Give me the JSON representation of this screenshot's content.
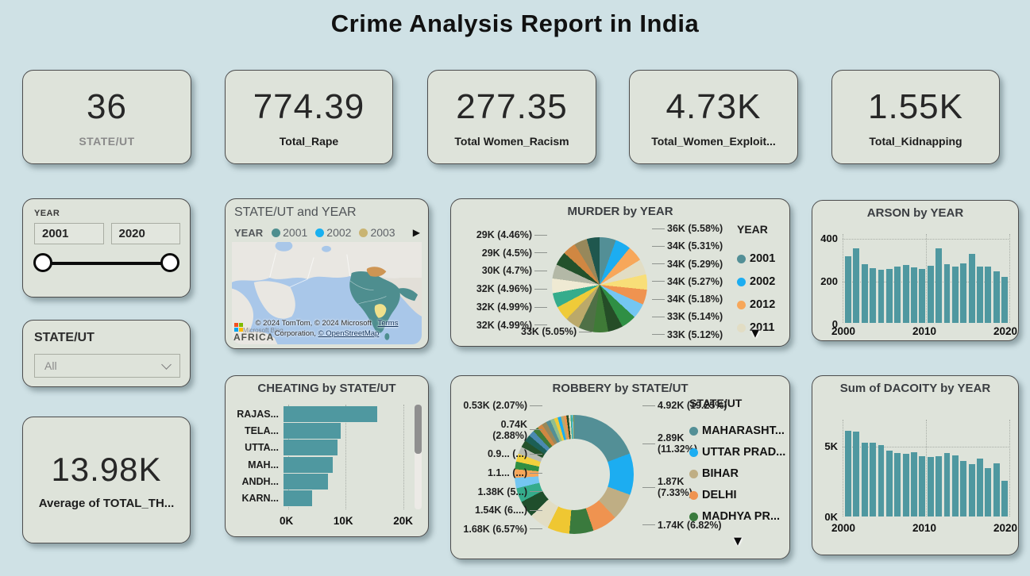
{
  "page_title": "Crime Analysis Report in India",
  "icons": {
    "legend_more": "▼",
    "map_expand": "▶"
  },
  "kpis": [
    {
      "value": "36",
      "label": "STATE/UT"
    },
    {
      "value": "774.39",
      "label": "Total_Rape"
    },
    {
      "value": "277.35",
      "label": "Total Women_Racism"
    },
    {
      "value": "4.73K",
      "label": "Total_Women_Exploit..."
    },
    {
      "value": "1.55K",
      "label": "Total_Kidnapping"
    }
  ],
  "slicers": {
    "year": {
      "label": "YEAR",
      "min": "2001",
      "max": "2020"
    },
    "state": {
      "label": "STATE/UT",
      "value": "All"
    }
  },
  "avg_card": {
    "value": "13.98K",
    "label": "Average of TOTAL_TH..."
  },
  "map_panel": {
    "title": "STATE/UT and YEAR",
    "legend_title": "YEAR",
    "legend": [
      {
        "label": "2001",
        "color": "#4E8E8F"
      },
      {
        "label": "2002",
        "color": "#18B0F0"
      },
      {
        "label": "2003",
        "color": "#C9B472"
      }
    ],
    "attribution_line1": "© 2024 TomTom, © 2024 Microsoft",
    "terms_label": "Terms",
    "attribution_line2": "Corporation,",
    "osm_label": "© OpenStreetMap",
    "africa_label": "AFRICA",
    "watermark": "Microsoft Bing"
  },
  "chart_data": [
    {
      "id": "murder",
      "type": "pie",
      "title": "MURDER by YEAR",
      "legend_title": "YEAR",
      "legend": [
        {
          "label": "2001",
          "color": "#538F96"
        },
        {
          "label": "2002",
          "color": "#1CADF1"
        },
        {
          "label": "2012",
          "color": "#F7A75A"
        },
        {
          "label": "2011",
          "color": "#E2DDC4"
        }
      ],
      "slices": [
        {
          "pct": 5.58,
          "color": "#538F96",
          "label": "36K (5.58%)"
        },
        {
          "pct": 5.31,
          "color": "#1CADF1",
          "label": "34K (5.31%)"
        },
        {
          "pct": 5.29,
          "color": "#F7A75A",
          "label": "34K (5.29%)"
        },
        {
          "pct": 5.27,
          "color": "#E2DDC4",
          "label": "34K (5.27%)"
        },
        {
          "pct": 5.18,
          "color": "#F8DE78",
          "label": "34K (5.18%)"
        },
        {
          "pct": 5.14,
          "color": "#EF9350",
          "label": "33K (5.14%)"
        },
        {
          "pct": 5.12,
          "color": "#74C6F2",
          "label": "33K (5.12%)"
        },
        {
          "pct": 5.1,
          "color": "#2F8F44",
          "label": null
        },
        {
          "pct": 5.08,
          "color": "#254D27",
          "label": null
        },
        {
          "pct": 5.06,
          "color": "#3F7A37",
          "label": null
        },
        {
          "pct": 5.05,
          "color": "#4F7046",
          "label": "33K (5.05%)"
        },
        {
          "pct": 5.02,
          "color": "#BBA96A",
          "label": null
        },
        {
          "pct": 4.99,
          "color": "#EFCB39",
          "label": "32K (4.99%)"
        },
        {
          "pct": 4.99,
          "color": "#35AC8C",
          "label": "32K (4.99%)"
        },
        {
          "pct": 4.96,
          "color": "#EFEAD3",
          "label": "32K (4.96%)"
        },
        {
          "pct": 4.85,
          "color": "#B3B8A6",
          "label": null
        },
        {
          "pct": 4.7,
          "color": "#23512B",
          "label": "30K (4.7%)"
        },
        {
          "pct": 4.5,
          "color": "#D08742",
          "label": "29K (4.5%)"
        },
        {
          "pct": 4.46,
          "color": "#97885B",
          "label": "29K (4.46%)"
        },
        {
          "pct": 4.35,
          "color": "#1F574E",
          "label": null
        }
      ],
      "labels_left": [
        "29K (4.46%)",
        "29K (4.5%)",
        "30K (4.7%)",
        "32K (4.96%)",
        "32K (4.99%)",
        "32K (4.99%)"
      ],
      "label_bottom": "33K (5.05%)",
      "labels_right": [
        "36K (5.58%)",
        "34K (5.31%)",
        "34K (5.29%)",
        "34K (5.27%)",
        "34K (5.18%)",
        "33K (5.14%)",
        "33K (5.12%)"
      ]
    },
    {
      "id": "arson",
      "type": "bar",
      "title": "ARSON by YEAR",
      "x": [
        2001,
        2002,
        2003,
        2004,
        2005,
        2006,
        2007,
        2008,
        2009,
        2010,
        2011,
        2012,
        2013,
        2014,
        2015,
        2016,
        2017,
        2018,
        2019,
        2020
      ],
      "values": [
        312,
        350,
        274,
        256,
        250,
        252,
        264,
        271,
        258,
        251,
        265,
        349,
        275,
        264,
        277,
        324,
        262,
        264,
        240,
        214
      ],
      "xlabel": "",
      "ylabel": "",
      "ylim": [
        0,
        400
      ],
      "yticks": [
        "400",
        "200",
        "0"
      ],
      "xticks": [
        "2000",
        "2010",
        "2020"
      ],
      "bar_color": "#4F98A0",
      "grid": true
    },
    {
      "id": "cheating",
      "type": "bar",
      "title": "CHEATING by STATE/UT",
      "orientation": "horizontal",
      "categories": [
        "RAJAS...",
        "TELA...",
        "UTTA...",
        "MAH...",
        "ANDH...",
        "KARN..."
      ],
      "values": [
        16.3,
        9.9,
        9.4,
        8.6,
        7.7,
        5.0
      ],
      "value_unit": "K",
      "xlim": [
        0,
        20
      ],
      "xticks": [
        "0K",
        "10K",
        "20K"
      ],
      "bar_color": "#4F98A0",
      "grid": true
    },
    {
      "id": "robbery",
      "type": "pie",
      "title": "ROBBERY by STATE/UT",
      "donut": true,
      "legend_title": "STATE/UT",
      "legend": [
        {
          "label": "MAHARASHT...",
          "color": "#538F96"
        },
        {
          "label": "UTTAR PRAD...",
          "color": "#1CADF1"
        },
        {
          "label": "BIHAR",
          "color": "#BFAE84"
        },
        {
          "label": "DELHI",
          "color": "#EF9350"
        },
        {
          "label": "MADHYA PR...",
          "color": "#3A7A3D"
        }
      ],
      "slices": [
        {
          "pct": 19.25,
          "color": "#538F96",
          "label": "4.92K (19.25%)"
        },
        {
          "pct": 11.32,
          "color": "#1CADF1",
          "label": "2.89K (11.32%)"
        },
        {
          "pct": 7.33,
          "color": "#BFAE84",
          "label": "1.87K (7.33%)"
        },
        {
          "pct": 6.82,
          "color": "#EF9350",
          "label": "1.74K (6.82%)"
        },
        {
          "pct": 6.57,
          "color": "#3A7A3D",
          "label": "1.68K (6.57%)"
        },
        {
          "pct": 6.04,
          "color": "#EFC732",
          "label": "1.54K (6....)"
        },
        {
          "pct": 5.41,
          "color": "#E2DDC4",
          "label": "1.38K (5...)"
        },
        {
          "pct": 4.6,
          "color": "#1F4E2C",
          "label": "1.1... (...)"
        },
        {
          "pct": 3.9,
          "color": "#35AC8C",
          "label": "0.9... (...)"
        },
        {
          "pct": 2.88,
          "color": "#74C6F2",
          "label": "0.74K (2.88%)"
        },
        {
          "pct": 2.3,
          "color": "#F7A75A",
          "label": null
        },
        {
          "pct": 2.07,
          "color": "#2F8F44",
          "label": "0.53K (2.07%)"
        },
        {
          "pct": 2.2,
          "color": "#F2D13E",
          "label": null
        },
        {
          "pct": 2.0,
          "color": "#B9BDB3",
          "label": null
        },
        {
          "pct": 1.9,
          "color": "#23512B",
          "label": null
        },
        {
          "pct": 1.8,
          "color": "#1C5F55",
          "label": null
        },
        {
          "pct": 1.6,
          "color": "#4A89B0",
          "label": null
        },
        {
          "pct": 1.5,
          "color": "#3F7A37",
          "label": null
        },
        {
          "pct": 1.4,
          "color": "#D08742",
          "label": null
        },
        {
          "pct": 1.3,
          "color": "#97885B",
          "label": null
        },
        {
          "pct": 1.2,
          "color": "#538F96",
          "label": null
        },
        {
          "pct": 1.1,
          "color": "#8FBF8F",
          "label": null
        },
        {
          "pct": 1.0,
          "color": "#EFCB39",
          "label": null
        },
        {
          "pct": 0.9,
          "color": "#1CADF1",
          "label": null
        },
        {
          "pct": 0.8,
          "color": "#BBA96A",
          "label": null
        },
        {
          "pct": 0.7,
          "color": "#EF9350",
          "label": null
        },
        {
          "pct": 0.6,
          "color": "#254D27",
          "label": null
        },
        {
          "pct": 0.5,
          "color": "#E2DDC4",
          "label": null
        },
        {
          "pct": 0.4,
          "color": "#35AC8C",
          "label": null
        },
        {
          "pct": 0.31,
          "color": "#74C6F2",
          "label": null
        },
        {
          "pct": 0.2,
          "color": "#2F8F44",
          "label": null
        },
        {
          "pct": 0.1,
          "color": "#F7A75A",
          "label": null
        }
      ],
      "labels_left": [
        "0.53K (2.07%)",
        "0.74K\n(2.88%)",
        "0.9... (...)",
        "1.1... (...)",
        "1.38K (5...)",
        "1.54K (6....)",
        "1.68K (6.57%)"
      ],
      "labels_right": [
        "4.92K (19.25%)",
        "2.89K\n(11.32%)",
        "1.87K\n(7.33%)",
        "1.74K (6.82%)"
      ]
    },
    {
      "id": "dacoity",
      "type": "bar",
      "title": "Sum of DACOITY by YEAR",
      "x": [
        2001,
        2002,
        2003,
        2004,
        2005,
        2006,
        2007,
        2008,
        2009,
        2010,
        2011,
        2012,
        2013,
        2014,
        2015,
        2016,
        2017,
        2018,
        2019,
        2020
      ],
      "values": [
        6.0,
        5.95,
        5.15,
        5.15,
        5.0,
        4.6,
        4.45,
        4.4,
        4.5,
        4.25,
        4.15,
        4.2,
        4.45,
        4.3,
        3.9,
        3.65,
        4.05,
        3.4,
        3.7,
        2.5
      ],
      "value_unit": "K",
      "xlabel": "",
      "ylabel": "",
      "ylim": [
        0,
        6.9
      ],
      "yticks": [
        "5K",
        "0K"
      ],
      "xticks": [
        "2000",
        "2010",
        "2020"
      ],
      "bar_color": "#4F98A0",
      "grid": true
    }
  ]
}
